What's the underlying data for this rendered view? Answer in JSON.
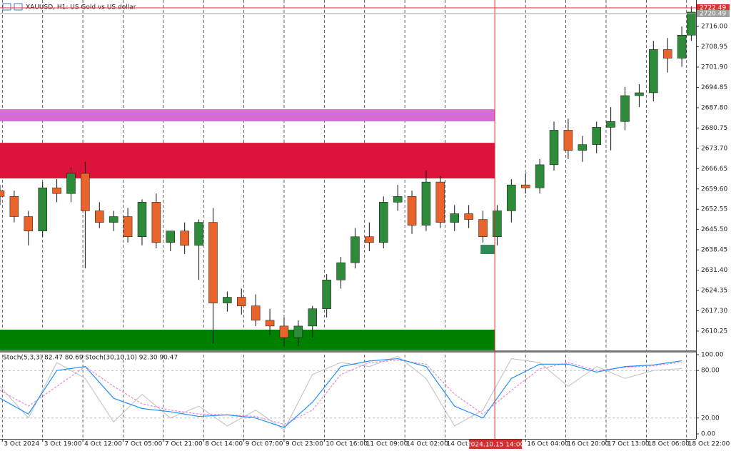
{
  "chart_data": {
    "type": "candlestick",
    "title": "XAUUSD, H1: US Gold vs US dollar",
    "xlim": [
      0,
      294
    ],
    "ylim": [
      2603.3,
      2725.2
    ],
    "xticks": [
      {
        "value": 1,
        "label": "3 Oct 2024"
      },
      {
        "value": 18,
        "label": "3 Oct 19:00"
      },
      {
        "value": 35,
        "label": "4 Oct 12:00"
      },
      {
        "value": 52,
        "label": "7 Oct 05:00"
      },
      {
        "value": 69,
        "label": "7 Oct 21:00"
      },
      {
        "value": 86,
        "label": "8 Oct 14:00"
      },
      {
        "value": 103,
        "label": "9 Oct 07:00"
      },
      {
        "value": 120,
        "label": "9 Oct 23:00"
      },
      {
        "value": 137,
        "label": "10 Oct 16:00"
      },
      {
        "value": 154,
        "label": "11 Oct 09:00"
      },
      {
        "value": 171,
        "label": "14 Oct 02:00"
      },
      {
        "value": 188,
        "label": "14 Oct 19:00"
      },
      {
        "value": 222,
        "label": "16 Oct 04:00"
      },
      {
        "value": 239,
        "label": "16 Oct 20:00"
      },
      {
        "value": 256,
        "label": "17 Oct 13:00"
      },
      {
        "value": 273,
        "label": "18 Oct 06:00"
      },
      {
        "value": 290,
        "label": "18 Oct 22:00"
      }
    ],
    "yticks": [
      {
        "value": 2716,
        "label": "2716.00"
      },
      {
        "value": 2708.95,
        "label": "2708.95"
      },
      {
        "value": 2701.9,
        "label": "2701.90"
      },
      {
        "value": 2694.85,
        "label": "2694.85"
      },
      {
        "value": 2687.8,
        "label": "2687.80"
      },
      {
        "value": 2680.75,
        "label": "2680.75"
      },
      {
        "value": 2673.7,
        "label": "2673.70"
      },
      {
        "value": 2666.65,
        "label": "2666.65"
      },
      {
        "value": 2659.6,
        "label": "2659.60"
      },
      {
        "value": 2652.55,
        "label": "2652.55"
      },
      {
        "value": 2645.5,
        "label": "2645.50"
      },
      {
        "value": 2638.45,
        "label": "2638.45"
      },
      {
        "value": 2631.4,
        "label": "2631.40"
      },
      {
        "value": 2624.35,
        "label": "2624.35"
      },
      {
        "value": 2617.3,
        "label": "2617.30"
      },
      {
        "value": 2610.25,
        "label": "2610.25"
      }
    ],
    "x": [
      0,
      6,
      12,
      18,
      24,
      30,
      36,
      42,
      48,
      54,
      60,
      66,
      72,
      78,
      84,
      90,
      96,
      102,
      108,
      114,
      120,
      126,
      132,
      138,
      144,
      150,
      156,
      162,
      168,
      174,
      180,
      186,
      192,
      198,
      204,
      210,
      216,
      222,
      228,
      234,
      240,
      246,
      252,
      258,
      264,
      270,
      276,
      282,
      288,
      292
    ],
    "open": [
      2659,
      2657,
      2650,
      2645,
      2660,
      2658,
      2665,
      2652,
      2648,
      2650,
      2643,
      2655,
      2641,
      2645,
      2640,
      2648,
      2620,
      2622,
      2619,
      2614,
      2612,
      2608,
      2612,
      2618,
      2628,
      2634,
      2643,
      2641,
      2655,
      2657,
      2647,
      2662,
      2648,
      2651,
      2649,
      2643,
      2652,
      2661,
      2660,
      2668,
      2680,
      2673,
      2675,
      2681,
      2683,
      2692,
      2693,
      2708,
      2705,
      2713
    ],
    "high": [
      2661,
      2659,
      2652,
      2662,
      2663,
      2667,
      2669,
      2655,
      2652,
      2653,
      2656,
      2658,
      2645,
      2648,
      2649,
      2653,
      2624,
      2625,
      2623,
      2618,
      2615,
      2614,
      2619,
      2630,
      2636,
      2646,
      2648,
      2657,
      2661,
      2659,
      2666,
      2664,
      2654,
      2654,
      2652,
      2654,
      2663,
      2665,
      2670,
      2683,
      2684,
      2678,
      2683,
      2688,
      2695,
      2696,
      2711,
      2712,
      2716,
      2723
    ],
    "low": [
      2654,
      2648,
      2640,
      2643,
      2655,
      2655,
      2632,
      2646,
      2645,
      2641,
      2640,
      2639,
      2638,
      2637,
      2628,
      2606,
      2617,
      2616,
      2612,
      2609,
      2605,
      2605,
      2608,
      2615,
      2625,
      2632,
      2638,
      2639,
      2652,
      2644,
      2645,
      2646,
      2645,
      2646,
      2641,
      2640,
      2648,
      2658,
      2658,
      2666,
      2670,
      2669,
      2672,
      2673,
      2680,
      2688,
      2690,
      2700,
      2702,
      2711
    ],
    "close": [
      2657,
      2650,
      2645,
      2660,
      2658,
      2665,
      2652,
      2648,
      2650,
      2643,
      2655,
      2641,
      2645,
      2640,
      2648,
      2620,
      2622,
      2619,
      2614,
      2612,
      2608,
      2612,
      2618,
      2628,
      2634,
      2643,
      2641,
      2655,
      2657,
      2647,
      2662,
      2648,
      2651,
      2649,
      2643,
      2652,
      2661,
      2660,
      2668,
      2680,
      2673,
      2675,
      2681,
      2683,
      2692,
      2693,
      2708,
      2705,
      2713,
      2721
    ],
    "up_color": "#2e8b3a",
    "down_color": "#e8642a",
    "zones": [
      {
        "from": 2683.06,
        "to": 2687.27,
        "x0": 0,
        "x1": 209,
        "color": "#d66cd6"
      },
      {
        "from": 2663.25,
        "to": 2675.6,
        "x0": 0,
        "x1": 209,
        "color": "#dc143c"
      },
      {
        "from": 2603.6,
        "to": 2610.75,
        "x0": 0,
        "x1": 209,
        "color": "#008000"
      },
      {
        "from": 2637.0,
        "to": 2640.2,
        "x0": 203,
        "x1": 209,
        "color": "#2e8b57"
      }
    ],
    "vline": {
      "value": 209,
      "label": "2024.10.15 14:00",
      "color": "#d32f2f"
    },
    "price_lines": [
      {
        "value": 2722.49,
        "label": "2722.49",
        "color": "#e03030"
      },
      {
        "value": 2720.49,
        "label": "2720.49",
        "color": "#a0a0a0"
      }
    ],
    "indicator": {
      "label": "Stoch(5,3,3) 82.47 80.69 Stoch(30,10,10) 92.30 90.47",
      "ylim": [
        0,
        100
      ],
      "yticks": [
        {
          "value": 100,
          "label": "100.00"
        },
        {
          "value": 80,
          "label": "80.00"
        },
        {
          "value": 20,
          "label": "20.00"
        },
        {
          "value": 0,
          "label": "0.00"
        }
      ],
      "x": [
        0,
        12,
        24,
        36,
        48,
        60,
        72,
        84,
        96,
        108,
        120,
        132,
        144,
        156,
        168,
        180,
        192,
        204,
        216,
        228,
        240,
        252,
        264,
        276,
        288
      ],
      "series": [
        {
          "color": "#c8c8c8",
          "values": [
            60,
            20,
            90,
            70,
            15,
            50,
            20,
            35,
            10,
            30,
            5,
            75,
            90,
            85,
            98,
            70,
            10,
            30,
            95,
            90,
            60,
            85,
            70,
            80,
            82.47
          ]
        },
        {
          "color": "#e88ad0",
          "dashed": true,
          "values": [
            55,
            35,
            60,
            85,
            60,
            38,
            30,
            25,
            24,
            22,
            12,
            30,
            75,
            90,
            93,
            88,
            50,
            25,
            55,
            82,
            90,
            80,
            84,
            86,
            90.47
          ]
        },
        {
          "color": "#1e90ff",
          "values": [
            45,
            25,
            80,
            85,
            45,
            32,
            28,
            22,
            24,
            20,
            8,
            40,
            85,
            92,
            95,
            85,
            35,
            20,
            70,
            88,
            88,
            78,
            85,
            87,
            92.3
          ]
        }
      ]
    }
  }
}
